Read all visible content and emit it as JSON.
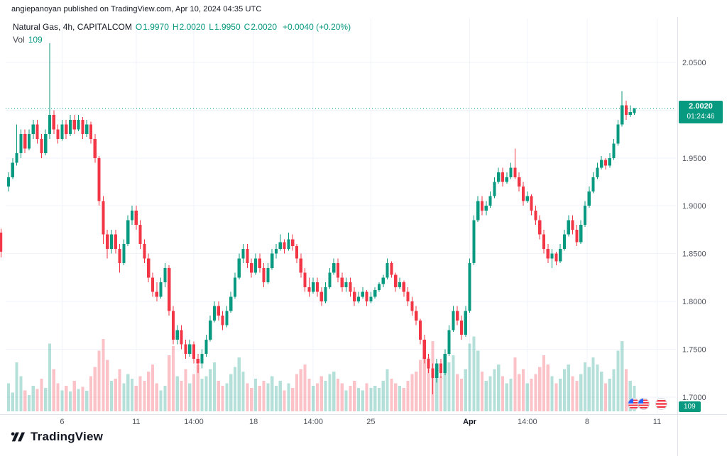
{
  "attribution": "angiepanoyan published on TradingView.com, Apr 10, 2024 04:35 UTC",
  "legend": {
    "symbol": "Natural Gas, 4h, CAPITALCOM",
    "ohlc": [
      {
        "label": "O",
        "value": "1.9970"
      },
      {
        "label": "H",
        "value": "2.0020"
      },
      {
        "label": "L",
        "value": "1.9950"
      },
      {
        "label": "C",
        "value": "2.0020"
      }
    ],
    "change": "+0.0040 (+0.20%)",
    "vol_label": "Vol",
    "vol_value": "109"
  },
  "price_axis": {
    "labels": [
      "2.0500",
      "2.0000",
      "1.9500",
      "1.9000",
      "1.8500",
      "1.8000",
      "1.7500",
      "1.7000"
    ]
  },
  "time_axis": {
    "ticks": [
      {
        "label": "6",
        "i": 13,
        "major": false
      },
      {
        "label": "11",
        "i": 31,
        "major": false
      },
      {
        "label": "14:00",
        "i": 45,
        "major": false
      },
      {
        "label": "18",
        "i": 59.5,
        "major": false
      },
      {
        "label": "14:00",
        "i": 74,
        "major": false
      },
      {
        "label": "25",
        "i": 88,
        "major": false
      },
      {
        "label": "Apr",
        "i": 112,
        "major": true
      },
      {
        "label": "14:00",
        "i": 126,
        "major": false
      },
      {
        "label": "8",
        "i": 140.5,
        "major": false
      },
      {
        "label": "11",
        "i": 157.5,
        "major": false
      }
    ]
  },
  "last_price_badge": {
    "price": "2.0020",
    "countdown": "01:24:46"
  },
  "volume_badge": {
    "value": "109"
  },
  "watermark": {
    "brand": "TradingView"
  },
  "colors": {
    "up": "#089981",
    "down": "#f23645",
    "vol_up": "rgba(8,153,129,0.30)",
    "vol_down": "rgba(242,54,69,0.30)",
    "grid": "#f0f3fa",
    "separator": "#e0e3eb",
    "axis_text": "#50535e",
    "axis_text_major": "#131722",
    "dotted_line": "#089981",
    "badge": "#089981"
  },
  "chart_data": {
    "type": "candlestick",
    "title": "Natural Gas, 4h, CAPITALCOM",
    "symbol": "Natural Gas",
    "timeframe": "4h",
    "exchange": "CAPITALCOM",
    "open": 1.997,
    "high": 2.002,
    "low": 1.995,
    "close": 2.002,
    "change": "+0.0040 (+0.20%)",
    "volume": 109,
    "ylim": [
      1.685,
      2.075
    ],
    "price_gridlines": [
      2.05,
      2.0,
      1.95,
      1.9,
      1.85,
      1.8,
      1.75,
      1.7
    ],
    "last_price": 2.002,
    "volume_axis_max": 340,
    "left_edge_candle": [
      1.872,
      1.876,
      1.846,
      1.852
    ],
    "candles": [
      [
        1.92,
        1.935,
        1.915,
        1.93
      ],
      [
        1.93,
        1.95,
        1.928,
        1.945
      ],
      [
        1.945,
        1.985,
        1.942,
        1.955
      ],
      [
        1.955,
        1.98,
        1.95,
        1.975
      ],
      [
        1.975,
        1.98,
        1.955,
        1.96
      ],
      [
        1.96,
        1.98,
        1.958,
        1.975
      ],
      [
        1.975,
        1.99,
        1.97,
        1.985
      ],
      [
        1.985,
        1.99,
        1.965,
        1.97
      ],
      [
        1.97,
        1.975,
        1.95,
        1.955
      ],
      [
        1.955,
        1.98,
        1.953,
        1.975
      ],
      [
        1.975,
        2.07,
        1.97,
        1.995
      ],
      [
        1.995,
        2.0,
        1.975,
        1.98
      ],
      [
        1.98,
        1.985,
        1.965,
        1.97
      ],
      [
        1.97,
        1.99,
        1.968,
        1.985
      ],
      [
        1.985,
        1.99,
        1.97,
        1.975
      ],
      [
        1.975,
        1.995,
        1.973,
        1.99
      ],
      [
        1.99,
        1.995,
        1.975,
        1.98
      ],
      [
        1.98,
        1.995,
        1.978,
        1.99
      ],
      [
        1.99,
        1.993,
        1.97,
        1.975
      ],
      [
        1.975,
        1.99,
        1.972,
        1.985
      ],
      [
        1.985,
        1.988,
        1.965,
        1.97
      ],
      [
        1.97,
        1.975,
        1.945,
        1.95
      ],
      [
        1.95,
        1.952,
        1.9,
        1.905
      ],
      [
        1.905,
        1.91,
        1.86,
        1.87
      ],
      [
        1.87,
        1.875,
        1.845,
        1.855
      ],
      [
        1.855,
        1.875,
        1.85,
        1.87
      ],
      [
        1.87,
        1.875,
        1.85,
        1.855
      ],
      [
        1.855,
        1.86,
        1.83,
        1.84
      ],
      [
        1.84,
        1.865,
        1.838,
        1.86
      ],
      [
        1.86,
        1.89,
        1.858,
        1.885
      ],
      [
        1.885,
        1.9,
        1.88,
        1.895
      ],
      [
        1.895,
        1.9,
        1.875,
        1.88
      ],
      [
        1.88,
        1.885,
        1.855,
        1.86
      ],
      [
        1.86,
        1.865,
        1.84,
        1.845
      ],
      [
        1.845,
        1.85,
        1.82,
        1.825
      ],
      [
        1.825,
        1.83,
        1.805,
        1.81
      ],
      [
        1.81,
        1.82,
        1.8,
        1.805
      ],
      [
        1.805,
        1.825,
        1.803,
        1.82
      ],
      [
        1.82,
        1.84,
        1.815,
        1.835
      ],
      [
        1.835,
        1.838,
        1.785,
        1.79
      ],
      [
        1.79,
        1.795,
        1.755,
        1.76
      ],
      [
        1.76,
        1.775,
        1.755,
        1.77
      ],
      [
        1.77,
        1.775,
        1.75,
        1.755
      ],
      [
        1.755,
        1.76,
        1.74,
        1.745
      ],
      [
        1.745,
        1.76,
        1.742,
        1.755
      ],
      [
        1.755,
        1.758,
        1.735,
        1.74
      ],
      [
        1.74,
        1.745,
        1.725,
        1.735
      ],
      [
        1.735,
        1.75,
        1.73,
        1.745
      ],
      [
        1.745,
        1.765,
        1.742,
        1.76
      ],
      [
        1.76,
        1.785,
        1.758,
        1.78
      ],
      [
        1.78,
        1.8,
        1.778,
        1.795
      ],
      [
        1.795,
        1.8,
        1.78,
        1.785
      ],
      [
        1.785,
        1.79,
        1.77,
        1.775
      ],
      [
        1.775,
        1.795,
        1.773,
        1.79
      ],
      [
        1.79,
        1.81,
        1.788,
        1.805
      ],
      [
        1.805,
        1.83,
        1.803,
        1.825
      ],
      [
        1.825,
        1.85,
        1.823,
        1.845
      ],
      [
        1.845,
        1.86,
        1.84,
        1.855
      ],
      [
        1.855,
        1.86,
        1.835,
        1.84
      ],
      [
        1.84,
        1.845,
        1.825,
        1.83
      ],
      [
        1.83,
        1.85,
        1.828,
        1.845
      ],
      [
        1.845,
        1.85,
        1.83,
        1.835
      ],
      [
        1.835,
        1.84,
        1.815,
        1.82
      ],
      [
        1.82,
        1.84,
        1.818,
        1.835
      ],
      [
        1.835,
        1.855,
        1.833,
        1.85
      ],
      [
        1.85,
        1.86,
        1.845,
        1.855
      ],
      [
        1.855,
        1.87,
        1.853,
        1.862
      ],
      [
        1.862,
        1.865,
        1.85,
        1.855
      ],
      [
        1.855,
        1.872,
        1.853,
        1.865
      ],
      [
        1.865,
        1.87,
        1.853,
        1.858
      ],
      [
        1.858,
        1.86,
        1.84,
        1.845
      ],
      [
        1.845,
        1.85,
        1.825,
        1.83
      ],
      [
        1.83,
        1.835,
        1.81,
        1.815
      ],
      [
        1.815,
        1.825,
        1.805,
        1.81
      ],
      [
        1.81,
        1.825,
        1.808,
        1.82
      ],
      [
        1.82,
        1.825,
        1.805,
        1.81
      ],
      [
        1.81,
        1.815,
        1.795,
        1.8
      ],
      [
        1.8,
        1.82,
        1.798,
        1.815
      ],
      [
        1.815,
        1.835,
        1.813,
        1.83
      ],
      [
        1.83,
        1.845,
        1.828,
        1.84
      ],
      [
        1.84,
        1.845,
        1.82,
        1.825
      ],
      [
        1.825,
        1.83,
        1.81,
        1.815
      ],
      [
        1.815,
        1.825,
        1.81,
        1.82
      ],
      [
        1.82,
        1.825,
        1.805,
        1.81
      ],
      [
        1.81,
        1.815,
        1.795,
        1.8
      ],
      [
        1.8,
        1.81,
        1.798,
        1.805
      ],
      [
        1.805,
        1.815,
        1.803,
        1.81
      ],
      [
        1.81,
        1.812,
        1.795,
        1.8
      ],
      [
        1.8,
        1.81,
        1.798,
        1.805
      ],
      [
        1.805,
        1.815,
        1.803,
        1.812
      ],
      [
        1.812,
        1.82,
        1.81,
        1.818
      ],
      [
        1.818,
        1.828,
        1.815,
        1.825
      ],
      [
        1.825,
        1.845,
        1.823,
        1.84
      ],
      [
        1.84,
        1.842,
        1.825,
        1.828
      ],
      [
        1.828,
        1.83,
        1.81,
        1.815
      ],
      [
        1.815,
        1.825,
        1.813,
        1.82
      ],
      [
        1.82,
        1.822,
        1.805,
        1.81
      ],
      [
        1.81,
        1.815,
        1.795,
        1.8
      ],
      [
        1.8,
        1.805,
        1.785,
        1.79
      ],
      [
        1.79,
        1.795,
        1.775,
        1.78
      ],
      [
        1.78,
        1.782,
        1.755,
        1.76
      ],
      [
        1.76,
        1.765,
        1.735,
        1.74
      ],
      [
        1.74,
        1.745,
        1.725,
        1.73
      ],
      [
        1.73,
        1.735,
        1.703,
        1.72
      ],
      [
        1.72,
        1.74,
        1.715,
        1.735
      ],
      [
        1.735,
        1.74,
        1.72,
        1.725
      ],
      [
        1.725,
        1.75,
        1.723,
        1.745
      ],
      [
        1.745,
        1.775,
        1.743,
        1.77
      ],
      [
        1.77,
        1.795,
        1.768,
        1.79
      ],
      [
        1.79,
        1.795,
        1.775,
        1.78
      ],
      [
        1.78,
        1.785,
        1.76,
        1.765
      ],
      [
        1.765,
        1.795,
        1.763,
        1.79
      ],
      [
        1.79,
        1.845,
        1.788,
        1.84
      ],
      [
        1.84,
        1.89,
        1.838,
        1.885
      ],
      [
        1.885,
        1.91,
        1.883,
        1.905
      ],
      [
        1.905,
        1.91,
        1.89,
        1.895
      ],
      [
        1.895,
        1.905,
        1.89,
        1.9
      ],
      [
        1.9,
        1.915,
        1.898,
        1.91
      ],
      [
        1.91,
        1.93,
        1.908,
        1.925
      ],
      [
        1.925,
        1.94,
        1.923,
        1.935
      ],
      [
        1.935,
        1.94,
        1.92,
        1.925
      ],
      [
        1.925,
        1.935,
        1.923,
        1.93
      ],
      [
        1.93,
        1.945,
        1.928,
        1.94
      ],
      [
        1.94,
        1.96,
        1.928,
        1.93
      ],
      [
        1.93,
        1.935,
        1.915,
        1.92
      ],
      [
        1.92,
        1.925,
        1.9,
        1.905
      ],
      [
        1.905,
        1.915,
        1.903,
        1.91
      ],
      [
        1.91,
        1.912,
        1.89,
        1.895
      ],
      [
        1.895,
        1.9,
        1.88,
        1.885
      ],
      [
        1.885,
        1.89,
        1.865,
        1.87
      ],
      [
        1.87,
        1.875,
        1.85,
        1.855
      ],
      [
        1.855,
        1.86,
        1.84,
        1.845
      ],
      [
        1.845,
        1.855,
        1.835,
        1.85
      ],
      [
        1.85,
        1.852,
        1.838,
        1.842
      ],
      [
        1.842,
        1.86,
        1.84,
        1.855
      ],
      [
        1.855,
        1.875,
        1.853,
        1.87
      ],
      [
        1.87,
        1.89,
        1.868,
        1.885
      ],
      [
        1.885,
        1.89,
        1.87,
        1.875
      ],
      [
        1.875,
        1.88,
        1.858,
        1.862
      ],
      [
        1.862,
        1.885,
        1.86,
        1.88
      ],
      [
        1.88,
        1.905,
        1.878,
        1.9
      ],
      [
        1.9,
        1.92,
        1.898,
        1.915
      ],
      [
        1.915,
        1.935,
        1.913,
        1.93
      ],
      [
        1.93,
        1.945,
        1.928,
        1.94
      ],
      [
        1.94,
        1.952,
        1.938,
        1.948
      ],
      [
        1.948,
        1.95,
        1.938,
        1.942
      ],
      [
        1.942,
        1.955,
        1.94,
        1.95
      ],
      [
        1.95,
        1.97,
        1.948,
        1.965
      ],
      [
        1.965,
        1.99,
        1.963,
        1.985
      ],
      [
        1.985,
        2.02,
        1.983,
        2.005
      ],
      [
        2.005,
        2.01,
        1.99,
        1.995
      ],
      [
        1.995,
        2.005,
        1.993,
        1.998
      ],
      [
        1.997,
        2.002,
        1.995,
        2.002
      ]
    ],
    "volumes": [
      120,
      80,
      210,
      150,
      90,
      70,
      110,
      95,
      140,
      100,
      290,
      180,
      120,
      90,
      110,
      85,
      130,
      95,
      105,
      88,
      150,
      190,
      260,
      310,
      220,
      130,
      140,
      180,
      120,
      160,
      140,
      110,
      150,
      130,
      170,
      200,
      120,
      90,
      110,
      240,
      280,
      150,
      130,
      180,
      120,
      160,
      200,
      140,
      150,
      180,
      210,
      130,
      110,
      120,
      160,
      190,
      230,
      170,
      120,
      100,
      140,
      110,
      130,
      120,
      150,
      110,
      130,
      90,
      120,
      100,
      160,
      180,
      200,
      140,
      110,
      120,
      150,
      130,
      160,
      170,
      140,
      120,
      90,
      110,
      130,
      100,
      90,
      120,
      100,
      110,
      100,
      130,
      180,
      140,
      120,
      110,
      100,
      130,
      160,
      170,
      220,
      260,
      230,
      300,
      180,
      150,
      170,
      210,
      240,
      160,
      140,
      180,
      290,
      320,
      260,
      170,
      130,
      150,
      180,
      200,
      150,
      120,
      140,
      230,
      160,
      180,
      120,
      140,
      160,
      190,
      240,
      200,
      150,
      120,
      140,
      180,
      200,
      150,
      130,
      160,
      210,
      190,
      230,
      200,
      170,
      120,
      140,
      180,
      260,
      300,
      180,
      130,
      109
    ]
  }
}
